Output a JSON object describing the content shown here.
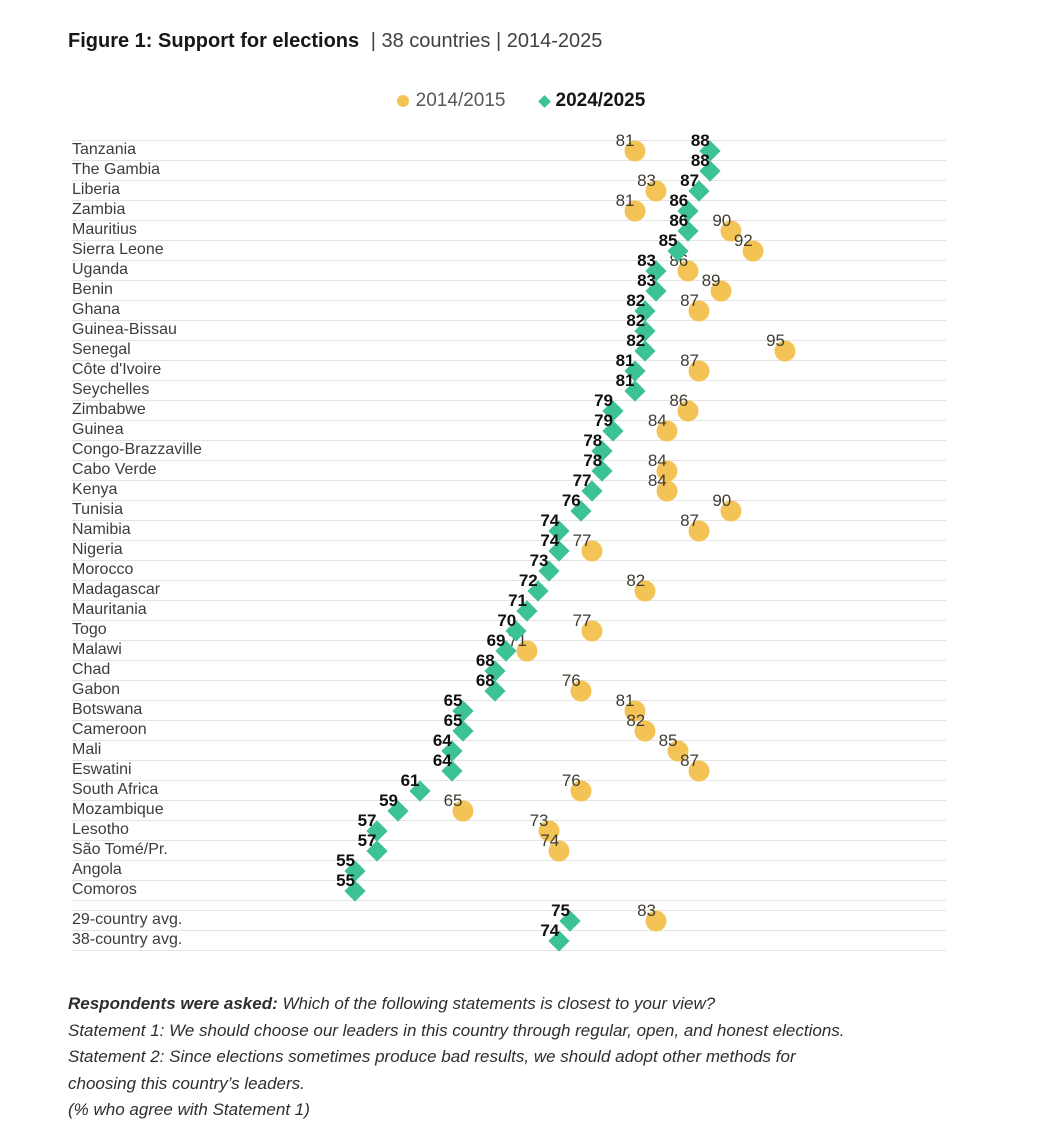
{
  "title": {
    "main": "Figure 1: Support for elections",
    "suffix": "|  38 countries  |  2014-2025"
  },
  "legend": {
    "items": [
      {
        "label": "2014/2015",
        "marker": "circle",
        "color": "#f4c355"
      },
      {
        "label": "2024/2025",
        "marker": "diamond",
        "color": "#3cc294"
      }
    ]
  },
  "chart_data": {
    "type": "scatter",
    "variant": "dot-plot",
    "title": "Support for elections",
    "subtitle": "38 countries | 2014-2025",
    "value_unit": "% who agree with Statement 1",
    "xlim": [
      52,
      98
    ],
    "grid": "horizontal-row-lines",
    "legend_position": "top-center",
    "series": [
      {
        "name": "2014/2015",
        "marker": "circle",
        "color": "#f4c355"
      },
      {
        "name": "2024/2025",
        "marker": "diamond",
        "color": "#3cc294"
      }
    ],
    "rows": [
      {
        "country": "Tanzania",
        "v2014": 81,
        "v2024": 88
      },
      {
        "country": "The Gambia",
        "v2014": null,
        "v2024": 88
      },
      {
        "country": "Liberia",
        "v2014": 83,
        "v2024": 87
      },
      {
        "country": "Zambia",
        "v2014": 81,
        "v2024": 86
      },
      {
        "country": "Mauritius",
        "v2014": 90,
        "v2024": 86
      },
      {
        "country": "Sierra Leone",
        "v2014": 92,
        "v2024": 85
      },
      {
        "country": "Uganda",
        "v2014": 86,
        "v2024": 83
      },
      {
        "country": "Benin",
        "v2014": 89,
        "v2024": 83
      },
      {
        "country": "Ghana",
        "v2014": 87,
        "v2024": 82
      },
      {
        "country": "Guinea-Bissau",
        "v2014": null,
        "v2024": 82
      },
      {
        "country": "Senegal",
        "v2014": 95,
        "v2024": 82
      },
      {
        "country": "Côte d'Ivoire",
        "v2014": 87,
        "v2024": 81
      },
      {
        "country": "Seychelles",
        "v2014": null,
        "v2024": 81
      },
      {
        "country": "Zimbabwe",
        "v2014": 86,
        "v2024": 79
      },
      {
        "country": "Guinea",
        "v2014": 84,
        "v2024": 79
      },
      {
        "country": "Congo-Brazzaville",
        "v2014": null,
        "v2024": 78
      },
      {
        "country": "Cabo Verde",
        "v2014": 84,
        "v2024": 78
      },
      {
        "country": "Kenya",
        "v2014": 84,
        "v2024": 77
      },
      {
        "country": "Tunisia",
        "v2014": 90,
        "v2024": 76
      },
      {
        "country": "Namibia",
        "v2014": 87,
        "v2024": 74
      },
      {
        "country": "Nigeria",
        "v2014": 77,
        "v2024": 74
      },
      {
        "country": "Morocco",
        "v2014": null,
        "v2024": 73
      },
      {
        "country": "Madagascar",
        "v2014": 82,
        "v2024": 72
      },
      {
        "country": "Mauritania",
        "v2014": null,
        "v2024": 71
      },
      {
        "country": "Togo",
        "v2014": 77,
        "v2024": 70
      },
      {
        "country": "Malawi",
        "v2014": 71,
        "v2024": 69
      },
      {
        "country": "Chad",
        "v2014": null,
        "v2024": 68
      },
      {
        "country": "Gabon",
        "v2014": 76,
        "v2024": 68
      },
      {
        "country": "Botswana",
        "v2014": 81,
        "v2024": 65
      },
      {
        "country": "Cameroon",
        "v2014": 82,
        "v2024": 65
      },
      {
        "country": "Mali",
        "v2014": 85,
        "v2024": 64
      },
      {
        "country": "Eswatini",
        "v2014": 87,
        "v2024": 64
      },
      {
        "country": "South Africa",
        "v2014": 76,
        "v2024": 61
      },
      {
        "country": "Mozambique",
        "v2014": 65,
        "v2024": 59
      },
      {
        "country": "Lesotho",
        "v2014": 73,
        "v2024": 57
      },
      {
        "country": "São Tomé/Pr.",
        "v2014": 74,
        "v2024": 57
      },
      {
        "country": "Angola",
        "v2014": null,
        "v2024": 55
      },
      {
        "country": "Comoros",
        "v2014": null,
        "v2024": 55
      }
    ],
    "avg_rows": [
      {
        "country": "29-country avg.",
        "v2014": 83,
        "v2024": 75
      },
      {
        "country": "38-country avg.",
        "v2014": null,
        "v2024": 74
      }
    ]
  },
  "footer": {
    "intro_bold": "Respondents were asked:",
    "intro_rest": " Which of the following statements is closest to your view?",
    "lines": [
      "Statement 1: We should choose our leaders in this country through regular, open, and honest elections.",
      "Statement 2: Since elections sometimes produce bad results, we should adopt other methods for",
      "choosing this country’s leaders.",
      "(% who agree with Statement 1)"
    ]
  },
  "colors": {
    "series_2014": "#f4c355",
    "series_2024": "#3cc294",
    "gridline": "#e4e4e4",
    "background": "#ffffff"
  }
}
